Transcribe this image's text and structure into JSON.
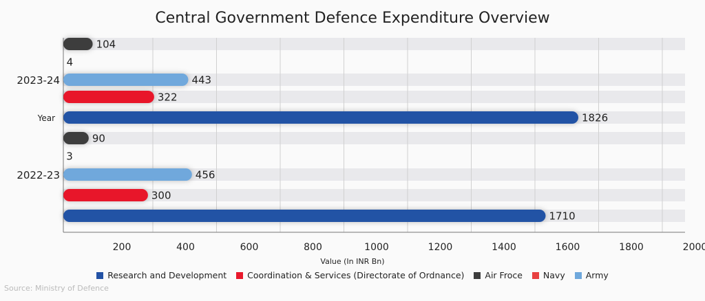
{
  "chart_data": {
    "type": "bar",
    "orientation": "horizontal",
    "title": "Central Government Defence Expenditure Overview",
    "xlabel": "Value (In INR Bn)",
    "ylabel": "Year",
    "xlim": [
      0,
      2000
    ],
    "xticks": [
      200,
      400,
      600,
      800,
      1000,
      1200,
      1400,
      1600,
      1800,
      2000
    ],
    "categories": [
      "2023-24",
      "2022-23"
    ],
    "series": [
      {
        "name": "Air Froce",
        "color": "#3d3d3d",
        "values": [
          104,
          90
        ]
      },
      {
        "name": "Navy",
        "color": "#e84040",
        "values": [
          4,
          3
        ]
      },
      {
        "name": "Army",
        "color": "#6fa8dc",
        "values": [
          443,
          456
        ]
      },
      {
        "name": "Coordination & Services (Directorate of Ordnance)",
        "color": "#e8192c",
        "values": [
          322,
          300
        ]
      },
      {
        "name": "Research and Development",
        "color": "#2352a5",
        "values": [
          1826,
          1710
        ]
      }
    ],
    "legend_order": [
      "Research and Development",
      "Coordination & Services (Directorate of Ordnance)",
      "Air Froce",
      "Navy",
      "Army"
    ],
    "legend": "bottom",
    "grid": true
  },
  "source": "Source: Ministry of Defence"
}
